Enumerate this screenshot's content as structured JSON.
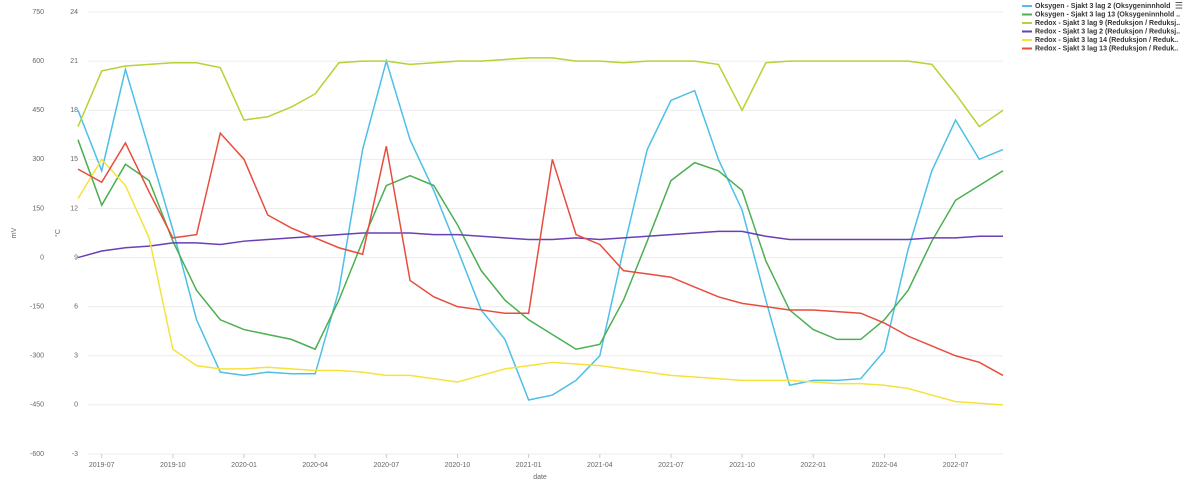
{
  "chart_data": {
    "type": "line",
    "xlabel": "date",
    "ylabel": "mV",
    "y2label": "°C",
    "x": [
      "2019-06",
      "2019-07",
      "2019-08",
      "2019-09",
      "2019-10",
      "2019-11",
      "2019-12",
      "2020-01",
      "2020-02",
      "2020-03",
      "2020-04",
      "2020-05",
      "2020-06",
      "2020-07",
      "2020-08",
      "2020-09",
      "2020-10",
      "2020-11",
      "2020-12",
      "2021-01",
      "2021-02",
      "2021-03",
      "2021-04",
      "2021-05",
      "2021-06",
      "2021-07",
      "2021-08",
      "2021-09",
      "2021-10",
      "2021-11",
      "2021-12",
      "2022-01",
      "2022-02",
      "2022-03",
      "2022-04",
      "2022-05",
      "2022-06",
      "2022-07",
      "2022-08",
      "2022-09"
    ],
    "xlim": [
      "2019-06",
      "2022-09"
    ],
    "xticks": [
      "2019-07",
      "2019-10",
      "2020-01",
      "2020-04",
      "2020-07",
      "2020-10",
      "2021-01",
      "2021-04",
      "2021-07",
      "2021-10",
      "2022-01",
      "2022-04",
      "2022-07"
    ],
    "ylim": [
      -600,
      750
    ],
    "yticks": [
      -600,
      -450,
      -300,
      -150,
      0,
      150,
      300,
      450,
      600,
      750
    ],
    "y2lim": [
      -3,
      24
    ],
    "y2ticks": [
      -3,
      0,
      3,
      6,
      9,
      12,
      15,
      18,
      21,
      24
    ],
    "grid": true,
    "series": [
      {
        "name": "Oksygen - Sjakt 3 lag 2 (Oksygeninnhold",
        "color": "#4dbfe8",
        "axis": "y2",
        "values": [
          18,
          14.3,
          20.5,
          15.6,
          10.7,
          5.2,
          2.0,
          1.8,
          2.0,
          1.9,
          1.9,
          7.0,
          15.6,
          21,
          16.2,
          13.1,
          9.5,
          5.8,
          4.0,
          0.3,
          0.6,
          1.5,
          3.0,
          9.5,
          15.6,
          18.6,
          19.2,
          15,
          11.9,
          6.4,
          1.2,
          1.5,
          1.5,
          1.6,
          3.3,
          9.5,
          14.3,
          17.4,
          15,
          15.6
        ]
      },
      {
        "name": "Oksygen - Sjakt 3 lag 13 (Oksygeninnhold ..",
        "color": "#4caf50",
        "axis": "y2",
        "values": [
          16.2,
          12.2,
          14.7,
          13.7,
          10,
          7.0,
          5.2,
          4.6,
          4.3,
          4.0,
          3.4,
          6.4,
          10,
          13.4,
          14,
          13.4,
          11,
          8.2,
          6.4,
          5.2,
          4.3,
          3.4,
          3.7,
          6.4,
          10,
          13.7,
          14.8,
          14.3,
          13.1,
          8.8,
          5.8,
          4.6,
          4.0,
          4.0,
          5.2,
          7.0,
          10,
          12.5,
          13.4,
          14.3
        ]
      },
      {
        "name": "Redox - Sjakt 3 lag 9 (Reduksjon / Reduksj..",
        "color": "#b5d334",
        "values": [
          400,
          570,
          585,
          590,
          595,
          595,
          580,
          420,
          430,
          460,
          500,
          595,
          600,
          600,
          590,
          595,
          600,
          600,
          605,
          610,
          610,
          600,
          600,
          595,
          600,
          600,
          600,
          590,
          450,
          595,
          600,
          600,
          600,
          600,
          600,
          600,
          590,
          500,
          400,
          450
        ]
      },
      {
        "name": "Redox - Sjakt 3 lag 2 (Reduksjon / Reduksj..",
        "color": "#6a3fb5",
        "values": [
          0,
          20,
          30,
          35,
          45,
          45,
          40,
          50,
          55,
          60,
          65,
          70,
          75,
          75,
          75,
          70,
          70,
          65,
          60,
          55,
          55,
          60,
          55,
          60,
          65,
          70,
          75,
          80,
          80,
          65,
          55,
          55,
          55,
          55,
          55,
          55,
          60,
          60,
          65,
          65
        ]
      },
      {
        "name": "Redox - Sjakt 3 lag 14 (Reduksjon / Reduk..",
        "color": "#f5e23b",
        "values": [
          180,
          300,
          220,
          60,
          -280,
          -330,
          -340,
          -340,
          -335,
          -340,
          -345,
          -345,
          -350,
          -360,
          -360,
          -370,
          -380,
          -360,
          -340,
          -330,
          -320,
          -325,
          -330,
          -340,
          -350,
          -360,
          -365,
          -370,
          -375,
          -375,
          -375,
          -380,
          -385,
          -385,
          -390,
          -400,
          -420,
          -440,
          -445,
          -450
        ]
      },
      {
        "name": "Redox - Sjakt 3 lag 13 (Reduksjon / Reduk..",
        "color": "#e84c3d",
        "values": [
          270,
          230,
          350,
          200,
          60,
          70,
          380,
          300,
          130,
          90,
          60,
          30,
          10,
          340,
          -70,
          -120,
          -150,
          -160,
          -170,
          -170,
          300,
          70,
          40,
          -40,
          -50,
          -60,
          -90,
          -120,
          -140,
          -150,
          -160,
          -160,
          -165,
          -170,
          -200,
          -240,
          -270,
          -300,
          -320,
          -360
        ]
      }
    ]
  }
}
